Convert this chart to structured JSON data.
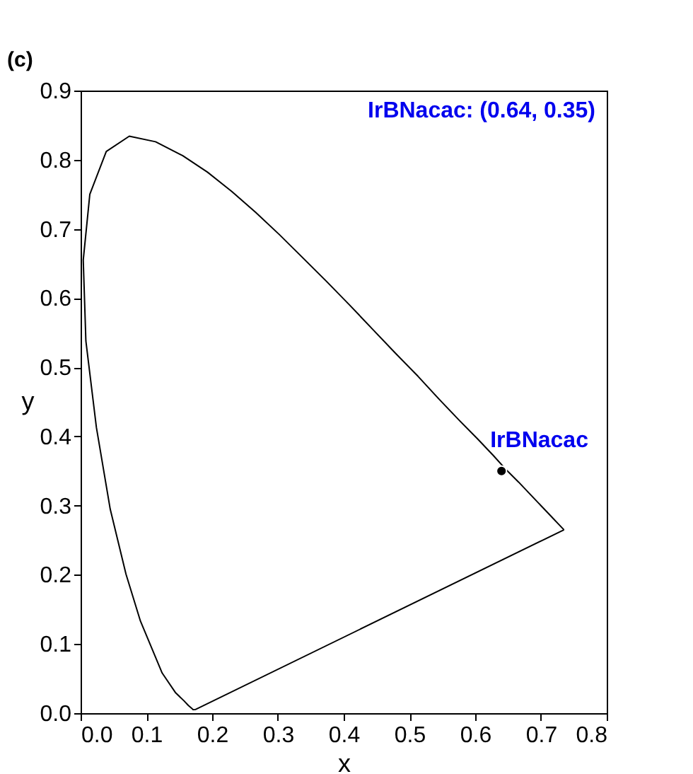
{
  "chart_data": {
    "type": "scatter",
    "xlabel": "x",
    "ylabel": "y",
    "xlim": [
      0,
      0.8
    ],
    "ylim": [
      0,
      0.9
    ],
    "xticks": [
      {
        "value": 0,
        "label": "0.0"
      },
      0.1,
      0.2,
      0.3,
      0.4,
      0.5,
      0.6,
      0.7,
      {
        "value": 0.8,
        "label": "0.8"
      }
    ],
    "yticks": [
      {
        "value": 0,
        "label": "0.0"
      },
      0.1,
      0.2,
      0.3,
      0.4,
      0.5,
      0.6,
      0.7,
      0.8,
      0.9
    ],
    "grid": false,
    "annotations": [
      "(c)",
      "IrBNacac: (0.64, 0.35)"
    ],
    "series": [
      {
        "type": "line",
        "color": "#000000",
        "x": [
          0.174,
          0.171,
          0.169,
          0.164,
          0.157,
          0.144,
          0.124,
          0.091,
          0.069,
          0.045,
          0.024,
          0.008,
          0.004,
          0.014,
          0.039,
          0.074,
          0.114,
          0.155,
          0.193,
          0.23,
          0.266,
          0.302,
          0.337,
          0.373,
          0.409,
          0.444,
          0.479,
          0.513,
          0.545,
          0.575,
          0.603,
          0.627,
          0.648,
          0.666,
          0.692,
          0.708,
          0.719,
          0.726,
          0.735
        ],
        "values": [
          0.005,
          0.005,
          0.007,
          0.011,
          0.018,
          0.03,
          0.058,
          0.133,
          0.201,
          0.295,
          0.413,
          0.538,
          0.655,
          0.75,
          0.812,
          0.834,
          0.826,
          0.806,
          0.782,
          0.754,
          0.724,
          0.692,
          0.659,
          0.625,
          0.59,
          0.555,
          0.52,
          0.487,
          0.454,
          0.424,
          0.397,
          0.373,
          0.351,
          0.334,
          0.308,
          0.292,
          0.281,
          0.274,
          0.265
        ]
      },
      {
        "type": "line",
        "color": "#000000",
        "x": [
          0.174,
          0.735
        ],
        "values": [
          0.005,
          0.265
        ]
      },
      {
        "name": "IrBNacac",
        "color": "#000000",
        "marker": "circle",
        "x": [
          0.64
        ],
        "values": [
          0.35
        ]
      }
    ]
  }
}
